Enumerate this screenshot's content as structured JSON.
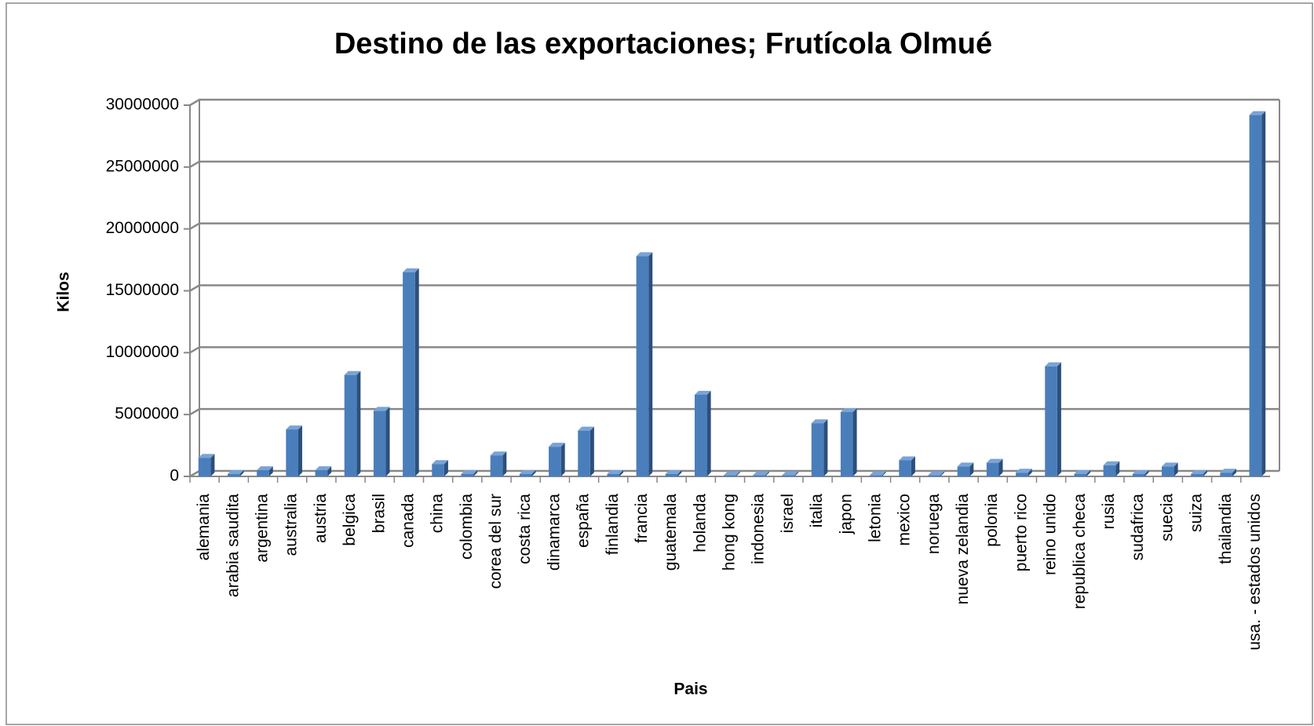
{
  "chart_data": {
    "type": "bar",
    "title": "Destino de las exportaciones; Frutícola Olmué",
    "x_label": "Pais",
    "y_label": "Kilos",
    "categories": [
      "alemania",
      "arabia saudita",
      "argentina",
      "australia",
      "austria",
      "belgica",
      "brasil",
      "canada",
      "china",
      "colombia",
      "corea del sur",
      "costa rica",
      "dinamarca",
      "españa",
      "finlandia",
      "francia",
      "guatemala",
      "holanda",
      "hong kong",
      "indonesia",
      "israel",
      "italia",
      "japon",
      "letonia",
      "mexico",
      "noruega",
      "nueva zelandia",
      "polonia",
      "puerto rico",
      "reino unido",
      "republica checa",
      "rusia",
      "sudafrica",
      "suecia",
      "suiza",
      "thailandia",
      "usa. - estados unidos"
    ],
    "values": [
      1500000,
      200000,
      500000,
      3800000,
      500000,
      8200000,
      5300000,
      16500000,
      1000000,
      200000,
      1700000,
      200000,
      2400000,
      3700000,
      200000,
      17800000,
      200000,
      6600000,
      100000,
      100000,
      100000,
      4300000,
      5200000,
      100000,
      1300000,
      100000,
      800000,
      1100000,
      300000,
      8900000,
      200000,
      900000,
      200000,
      800000,
      200000,
      300000,
      29200000
    ],
    "color": "#4a7ebb",
    "ylim": [
      0,
      30000000
    ],
    "yticks": [
      0,
      5000000,
      10000000,
      15000000,
      20000000,
      25000000,
      30000000
    ],
    "grid": true
  }
}
